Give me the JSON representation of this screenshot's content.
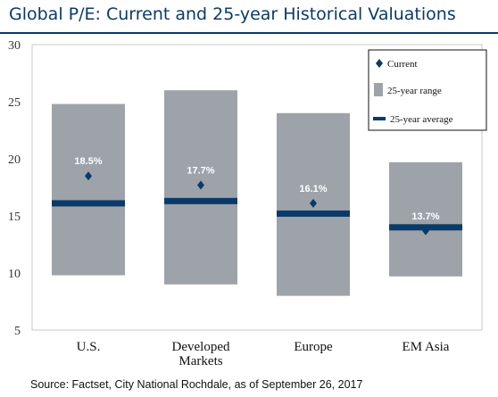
{
  "title": "Global P/E: Current and 25-year Historical Valuations",
  "source": "Source: Factset, City National Rochdale, as of September 26, 2017",
  "colors": {
    "range": "#9da3a9",
    "avg": "#0a3a6a",
    "current": "#0a3a6a",
    "label": "#ffffff",
    "title": "#0a3a6a"
  },
  "chart_data": {
    "type": "bar",
    "categories": [
      [
        "U.S."
      ],
      [
        "Developed",
        "Markets"
      ],
      [
        "Europe"
      ],
      [
        "EM Asia"
      ]
    ],
    "range_low": [
      9.8,
      9.0,
      8.0,
      9.7
    ],
    "range_high": [
      24.8,
      26.0,
      24.0,
      19.7
    ],
    "average": [
      16.1,
      16.3,
      15.2,
      14.0
    ],
    "current": [
      18.5,
      17.7,
      16.1,
      13.7
    ],
    "current_labels": [
      "18.5%",
      "17.7%",
      "16.1%",
      "13.7%"
    ],
    "ylim": [
      5,
      30
    ],
    "yticks": [
      5,
      10,
      15,
      20,
      25,
      30
    ],
    "legend": {
      "position": "top-right",
      "current": "Current",
      "range": "25-year range",
      "average": "25-year average"
    }
  }
}
